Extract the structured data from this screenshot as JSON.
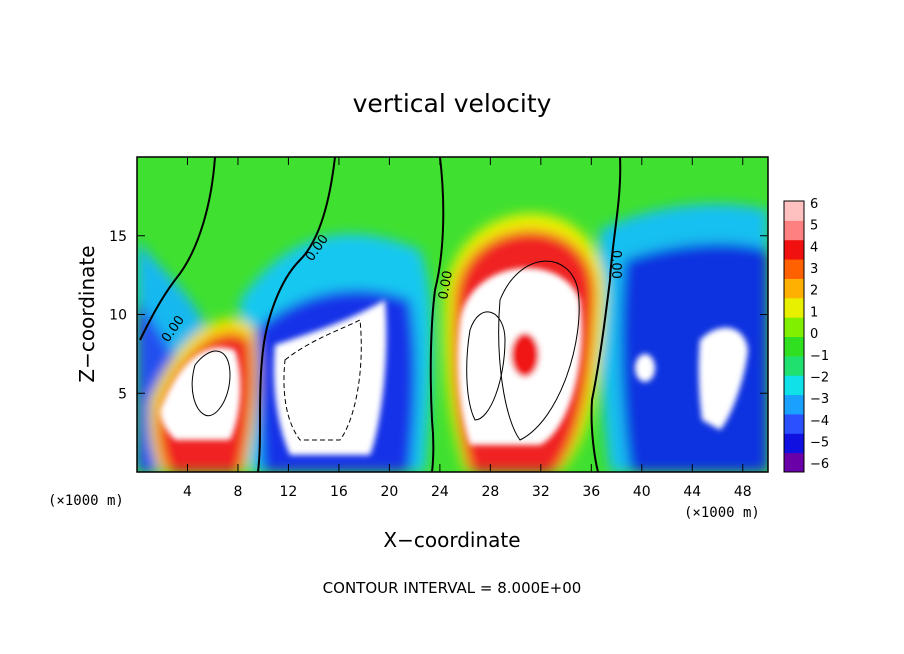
{
  "chart_data": {
    "type": "heatmap",
    "title": "vertical velocity",
    "xlabel": "X−coordinate",
    "ylabel": "Z−coordinate",
    "x_unit_left": "(×1000 m)",
    "x_unit_right": "(×1000 m)",
    "xlim": [
      0,
      50
    ],
    "ylim": [
      0,
      20
    ],
    "x_ticks": [
      4,
      8,
      12,
      16,
      20,
      24,
      28,
      32,
      36,
      40,
      44,
      48
    ],
    "y_ticks": [
      5,
      10,
      15
    ],
    "colorbar": {
      "ticks": [
        "6",
        "5",
        "4",
        "3",
        "2",
        "1",
        "0",
        "−1",
        "−2",
        "−3",
        "−4",
        "−5",
        "−6"
      ],
      "min": -6,
      "max": 6,
      "colors": [
        "#6a00a8",
        "#1010e0",
        "#2a50ff",
        "#1aa0ff",
        "#10e0e8",
        "#20e070",
        "#30e020",
        "#80f000",
        "#e8f000",
        "#ffb000",
        "#ff6000",
        "#f01010",
        "#ff8080",
        "#ffc0c0"
      ]
    },
    "contour_labels": [
      "0.00",
      "0.00",
      "0.00",
      "0.00"
    ],
    "footer": "CONTOUR INTERVAL = 8.000E+00",
    "grid": false
  }
}
